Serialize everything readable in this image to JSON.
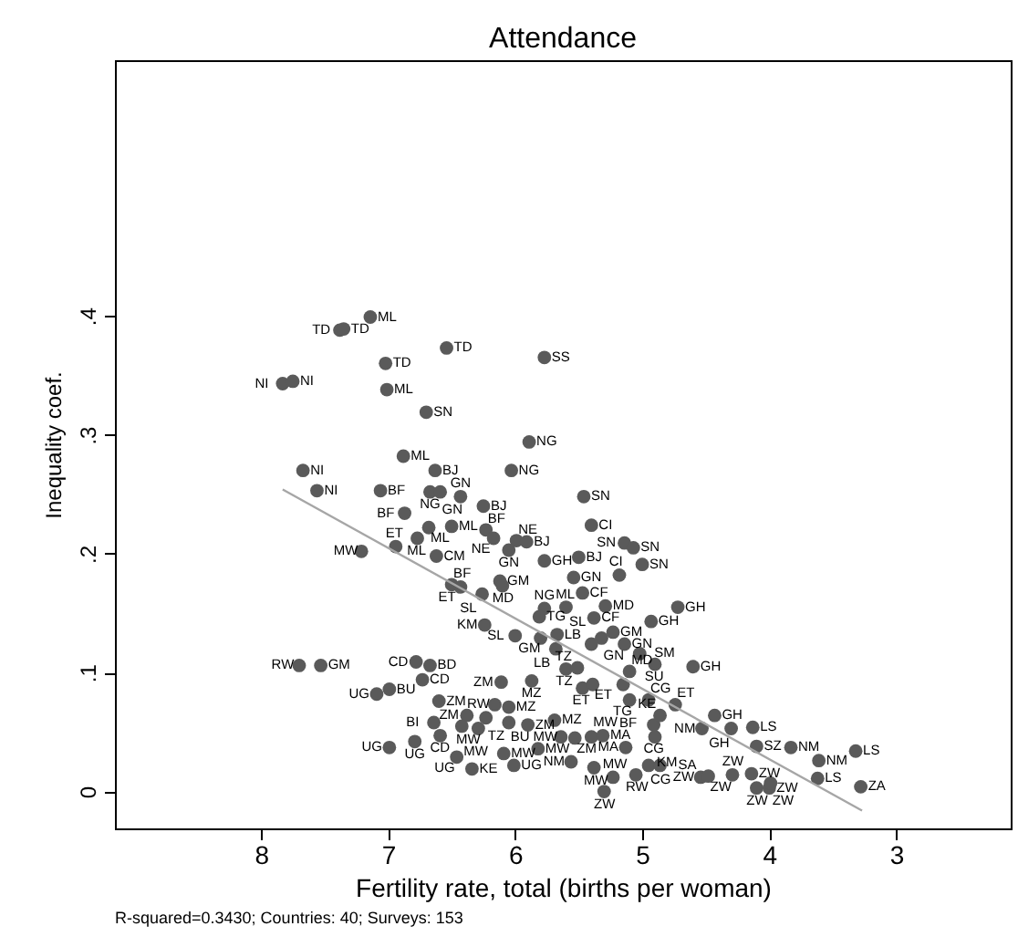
{
  "chart_data": {
    "type": "scatter",
    "title": "Attendance",
    "xlabel": "Fertility rate, total (births per woman)",
    "ylabel": "Inequality coef.",
    "annotations": [
      "R-squared=0.3430; Countries: 40; Surveys: 153"
    ],
    "xlim": [
      9.15,
      2.1
    ],
    "xticks": [
      8,
      7,
      6,
      5,
      4,
      3
    ],
    "ylim": [
      -0.031,
      0.615
    ],
    "yticks": [
      0,
      {
        "value": 0.1,
        "label": ".1"
      },
      {
        "value": 0.2,
        "label": ".2"
      },
      {
        "value": 0.3,
        "label": ".3"
      },
      {
        "value": 0.4,
        "label": ".4"
      }
    ],
    "grid": false,
    "series": [
      {
        "marker": "circle",
        "color": "#5a5a5a",
        "x": [
          7.14,
          7.38,
          7.35,
          6.54,
          5.77,
          7.02,
          7.83,
          7.75,
          7.01,
          6.7,
          5.89,
          6.88,
          7.67,
          6.63,
          6.03,
          7.56,
          7.06,
          6.67,
          6.59,
          6.43,
          6.25,
          5.46,
          6.87,
          6.5,
          6.68,
          5.4,
          6.23,
          6.77,
          6.17,
          5.99,
          5.91,
          5.14,
          5.07,
          6.94,
          7.21,
          6.62,
          6.05,
          5.77,
          5.5,
          5.0,
          5.54,
          5.18,
          6.5,
          6.43,
          6.12,
          6.1,
          6.26,
          5.47,
          4.72,
          5.29,
          5.77,
          5.81,
          5.6,
          5.38,
          4.93,
          6.24,
          6.0,
          5.8,
          5.67,
          5.23,
          5.32,
          5.4,
          5.14,
          5.68,
          5.02,
          7.7,
          7.53,
          6.78,
          6.67,
          6.73,
          4.9,
          4.6,
          5.6,
          5.51,
          5.1,
          6.11,
          5.87,
          5.47,
          5.39,
          5.15,
          6.99,
          7.09,
          6.6,
          6.16,
          6.05,
          5.1,
          4.95,
          4.74,
          4.43,
          4.13,
          4.53,
          4.3,
          6.38,
          6.23,
          6.64,
          6.05,
          6.29,
          6.59,
          6.42,
          5.69,
          5.9,
          5.64,
          5.53,
          5.4,
          5.31,
          5.13,
          4.91,
          4.9,
          4.86,
          6.99,
          6.79,
          6.46,
          6.09,
          5.82,
          6.34,
          6.01,
          5.56,
          5.38,
          5.23,
          5.05,
          4.95,
          4.86,
          5.3,
          4.54,
          4.48,
          4.29,
          4.14,
          4.1,
          4.0,
          3.99,
          3.62,
          3.28,
          3.32,
          3.61,
          3.83,
          4.1
        ],
        "values": [
          0.399,
          0.388,
          0.389,
          0.373,
          0.365,
          0.36,
          0.343,
          0.345,
          0.338,
          0.319,
          0.294,
          0.282,
          0.27,
          0.27,
          0.27,
          0.253,
          0.253,
          0.252,
          0.252,
          0.248,
          0.24,
          0.248,
          0.234,
          0.223,
          0.222,
          0.224,
          0.22,
          0.213,
          0.213,
          0.211,
          0.21,
          0.209,
          0.205,
          0.206,
          0.202,
          0.198,
          0.203,
          0.194,
          0.197,
          0.191,
          0.18,
          0.182,
          0.174,
          0.172,
          0.177,
          0.173,
          0.166,
          0.167,
          0.155,
          0.156,
          0.154,
          0.147,
          0.155,
          0.146,
          0.143,
          0.14,
          0.131,
          0.129,
          0.132,
          0.134,
          0.129,
          0.124,
          0.124,
          0.12,
          0.116,
          0.106,
          0.106,
          0.109,
          0.106,
          0.094,
          0.107,
          0.105,
          0.103,
          0.104,
          0.101,
          0.092,
          0.093,
          0.087,
          0.09,
          0.09,
          0.086,
          0.082,
          0.076,
          0.073,
          0.071,
          0.077,
          0.077,
          0.073,
          0.064,
          0.054,
          0.053,
          0.053,
          0.064,
          0.062,
          0.058,
          0.058,
          0.053,
          0.047,
          0.055,
          0.06,
          0.056,
          0.046,
          0.045,
          0.046,
          0.047,
          0.037,
          0.056,
          0.046,
          0.064,
          0.037,
          0.042,
          0.029,
          0.032,
          0.036,
          0.019,
          0.022,
          0.025,
          0.02,
          0.012,
          0.014,
          0.022,
          0.022,
          0.0,
          0.012,
          0.013,
          0.014,
          0.015,
          0.003,
          0.003,
          0.007,
          0.011,
          0.004,
          0.034,
          0.026,
          0.037,
          0.038
        ],
        "value_labels": [
          "ML",
          "TD",
          "TD",
          "TD",
          "SS",
          "TD",
          "NI",
          "NI",
          "ML",
          "SN",
          "NG",
          "ML",
          "NI",
          "BJ",
          "NG",
          "NI",
          "BF",
          "NG",
          "GN",
          "GN",
          "BJ",
          "SN",
          "BF",
          "ML",
          "ML",
          "CI",
          "BF",
          "ML",
          "NE",
          "NE",
          "BJ",
          "SN",
          "SN",
          "ET",
          "MW",
          "CM",
          "GN",
          "GH",
          "BJ",
          "SN",
          "GN",
          "CI",
          "BF",
          "ET",
          "GM",
          "MD",
          "SL",
          "CF",
          "GH",
          "MD",
          "NG",
          "TG",
          "ML",
          "CF",
          "GH",
          "KM",
          "SL",
          "GM",
          "LB",
          "GM",
          "GN",
          "SL",
          "GN",
          "LB",
          "SM",
          "RW",
          "GM",
          "CD",
          "BD",
          "CD",
          "SU",
          "GH",
          "TZ",
          "TZ",
          "MD",
          "ZM",
          "MZ",
          "ET",
          "ET",
          "TG",
          "BU",
          "UG",
          "ZM",
          "RW",
          "MZ",
          "BF",
          "CG",
          "ET",
          "GH",
          "LS",
          "NM",
          "GH",
          "ZM",
          "TZ",
          "BI",
          "BU",
          "MW",
          "CD",
          "MW",
          "MZ",
          "ZM",
          "MW",
          "ZM",
          "MW",
          "MA",
          "MA",
          "CG",
          "KM",
          "KE",
          "UG",
          "UG",
          "UG",
          "MW",
          "MW",
          "KE",
          "UG",
          "NM",
          "MW",
          "MW",
          "RW",
          "CG",
          "SA",
          "ZW",
          "ZW",
          "ZW",
          "ZW",
          "ZW",
          "ZW",
          "ZW",
          "ZW",
          "LS",
          "ZA",
          "LS",
          "NM",
          "NM",
          "SZ"
        ]
      },
      {
        "type": "line",
        "color": "#a6a6a6",
        "x": [
          7.83,
          3.27
        ],
        "values": [
          0.254,
          -0.016
        ]
      }
    ]
  }
}
